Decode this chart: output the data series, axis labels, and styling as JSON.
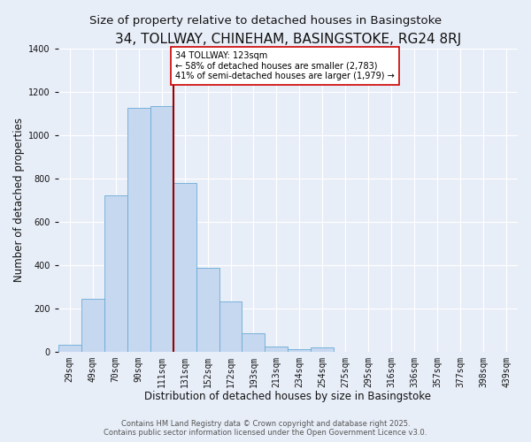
{
  "title": "34, TOLLWAY, CHINEHAM, BASINGSTOKE, RG24 8RJ",
  "subtitle": "Size of property relative to detached houses in Basingstoke",
  "xlabel": "Distribution of detached houses by size in Basingstoke",
  "ylabel": "Number of detached properties",
  "bar_labels": [
    "29sqm",
    "49sqm",
    "70sqm",
    "90sqm",
    "111sqm",
    "131sqm",
    "152sqm",
    "172sqm",
    "193sqm",
    "213sqm",
    "234sqm",
    "254sqm",
    "275sqm",
    "295sqm",
    "316sqm",
    "336sqm",
    "357sqm",
    "377sqm",
    "398sqm",
    "439sqm"
  ],
  "bar_values": [
    30,
    245,
    720,
    1125,
    1135,
    780,
    385,
    230,
    85,
    25,
    10,
    20,
    0,
    0,
    0,
    0,
    0,
    0,
    0,
    0
  ],
  "bar_color": "#c5d8f0",
  "bar_edge_color": "#6aaad4",
  "vline_x_idx": 4.5,
  "vline_color": "#990000",
  "annotation_title": "34 TOLLWAY: 123sqm",
  "annotation_line1": "← 58% of detached houses are smaller (2,783)",
  "annotation_line2": "41% of semi-detached houses are larger (1,979) →",
  "annotation_box_color": "#ffffff",
  "annotation_box_edge": "#cc0000",
  "ylim": [
    0,
    1400
  ],
  "yticks": [
    0,
    200,
    400,
    600,
    800,
    1000,
    1200,
    1400
  ],
  "footer1": "Contains HM Land Registry data © Crown copyright and database right 2025.",
  "footer2": "Contains public sector information licensed under the Open Government Licence v3.0.",
  "bg_color": "#e8eef8",
  "grid_color": "#ffffff",
  "title_fontsize": 11,
  "subtitle_fontsize": 9.5,
  "axis_label_fontsize": 8.5,
  "tick_fontsize": 7,
  "annotation_fontsize": 7,
  "footer_fontsize": 6
}
